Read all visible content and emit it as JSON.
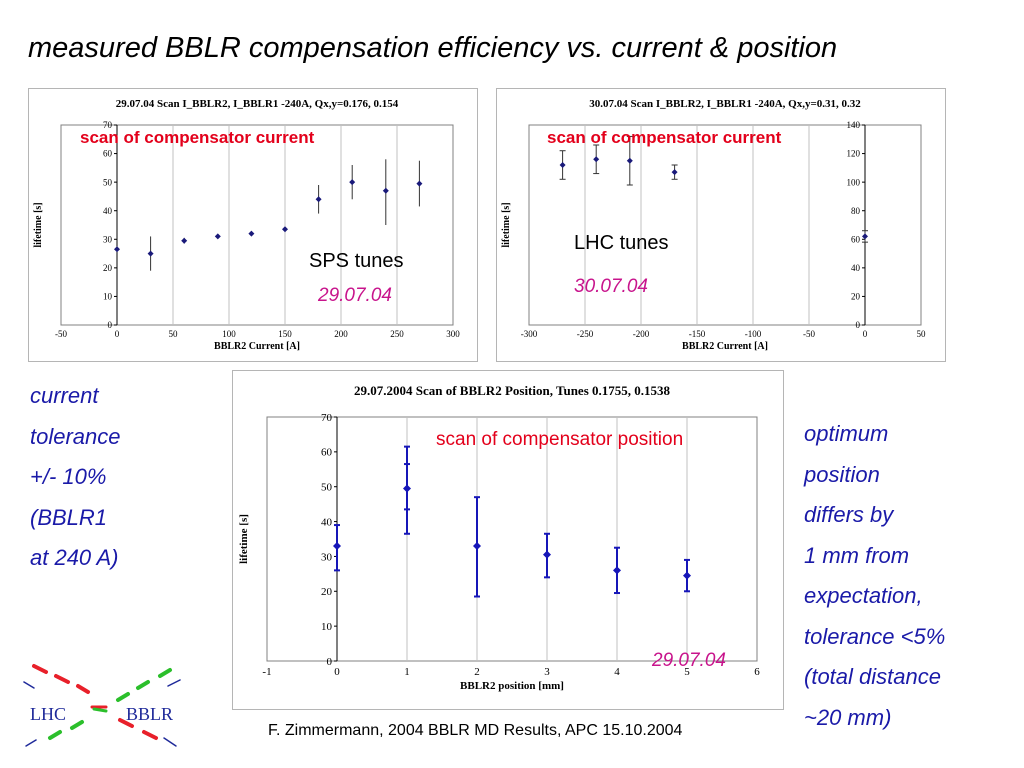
{
  "slide": {
    "title": "measured BBLR compensation efficiency vs. current & position",
    "footer": "F. Zimmermann, 2004 BBLR MD Results, APC 15.10.2004",
    "left_note": [
      "current",
      "tolerance",
      "+/- 10%",
      "(BBLR1",
      "at 240 A)"
    ],
    "right_note": [
      "optimum",
      "position",
      "differs by",
      "1 mm from",
      "expectation,",
      "tolerance <5%",
      "(total distance",
      "~20 mm)"
    ],
    "logo": {
      "left_text": "LHC",
      "right_text": "BBLR",
      "colors": {
        "red": "#e8202a",
        "green": "#2bbf2b",
        "blue": "#1f2a9a"
      }
    }
  },
  "overlays": {
    "chart1_label": "scan of compensator current",
    "chart1_tunes": "SPS tunes",
    "chart1_date": "29.07.04",
    "chart2_label": "scan of compensator current",
    "chart2_tunes": "LHC tunes",
    "chart2_date": "30.07.04",
    "chart3_label": "scan of compensator position",
    "chart3_date": "29.07.04"
  },
  "colors": {
    "marker": "#1a1a7a",
    "marker_bright": "#1616b8",
    "overlay_red": "#e3001b",
    "date_magenta": "#c8148c",
    "note_blue": "#1a1aa8"
  },
  "chart_data": [
    {
      "type": "scatter",
      "title": "29.07.04 Scan I_BBLR2, I_BBLR1 -240A, Qx,y=0.176, 0.154",
      "xlabel": "BBLR2 Current [A]",
      "ylabel": "lifetime [s]",
      "xlim": [
        -50,
        300
      ],
      "ylim": [
        0,
        70
      ],
      "xticks": [
        "-50",
        "0",
        "50",
        "100",
        "150",
        "200",
        "250",
        "300"
      ],
      "yticks": [
        "0",
        "10",
        "20",
        "30",
        "40",
        "50",
        "60",
        "70"
      ],
      "grid": true,
      "x": [
        0,
        30,
        60,
        90,
        120,
        150,
        180,
        210,
        240,
        270
      ],
      "y": [
        26.5,
        25,
        29.5,
        31,
        32,
        33.5,
        44,
        50,
        47,
        49.5
      ],
      "yerr_low": [
        0,
        6,
        1,
        0.5,
        0.5,
        0.5,
        5,
        6,
        12,
        8
      ],
      "yerr_high": [
        0,
        6,
        1,
        0.5,
        0.5,
        0.5,
        5,
        6,
        11,
        8
      ]
    },
    {
      "type": "scatter",
      "title": "30.07.04 Scan I_BBLR2, I_BBLR1 -240A, Qx,y=0.31, 0.32",
      "xlabel": "BBLR2 Current [A]",
      "ylabel": "lifetime [s]",
      "xlim": [
        -300,
        50
      ],
      "ylim": [
        0,
        140
      ],
      "xticks": [
        "-300",
        "-250",
        "-200",
        "-150",
        "-100",
        "-50",
        "0",
        "50"
      ],
      "yticks": [
        "0",
        "20",
        "40",
        "60",
        "80",
        "100",
        "120",
        "140"
      ],
      "grid": true,
      "x": [
        -270,
        -240,
        -210,
        -170,
        0
      ],
      "y": [
        112,
        116,
        115,
        107,
        62
      ],
      "yerr_low": [
        10,
        10,
        17,
        5,
        4
      ],
      "yerr_high": [
        10,
        10,
        17,
        5,
        4
      ]
    },
    {
      "type": "scatter",
      "title": "29.07.2004 Scan of BBLR2 Position, Tunes 0.1755, 0.1538",
      "xlabel": "BBLR2 position [mm]",
      "ylabel": "lifetime [s]",
      "xlim": [
        -1,
        6
      ],
      "ylim": [
        0,
        70
      ],
      "xticks": [
        "-1",
        "0",
        "1",
        "2",
        "3",
        "4",
        "5",
        "6"
      ],
      "yticks": [
        "0",
        "10",
        "20",
        "30",
        "40",
        "50",
        "60",
        "70"
      ],
      "grid": true,
      "x": [
        0,
        1,
        2,
        3,
        4,
        5
      ],
      "y": [
        33,
        49.5,
        33,
        30.5,
        26,
        24.5
      ],
      "yerr_low": [
        7,
        13,
        14.5,
        6.5,
        6.5,
        4.5
      ],
      "yerr_high": [
        6,
        12,
        14,
        6,
        6.5,
        4.5
      ],
      "inner_err_low": [
        0,
        6,
        0,
        0,
        0,
        0
      ],
      "inner_err_high": [
        0,
        7,
        0,
        0,
        0,
        0
      ]
    }
  ]
}
